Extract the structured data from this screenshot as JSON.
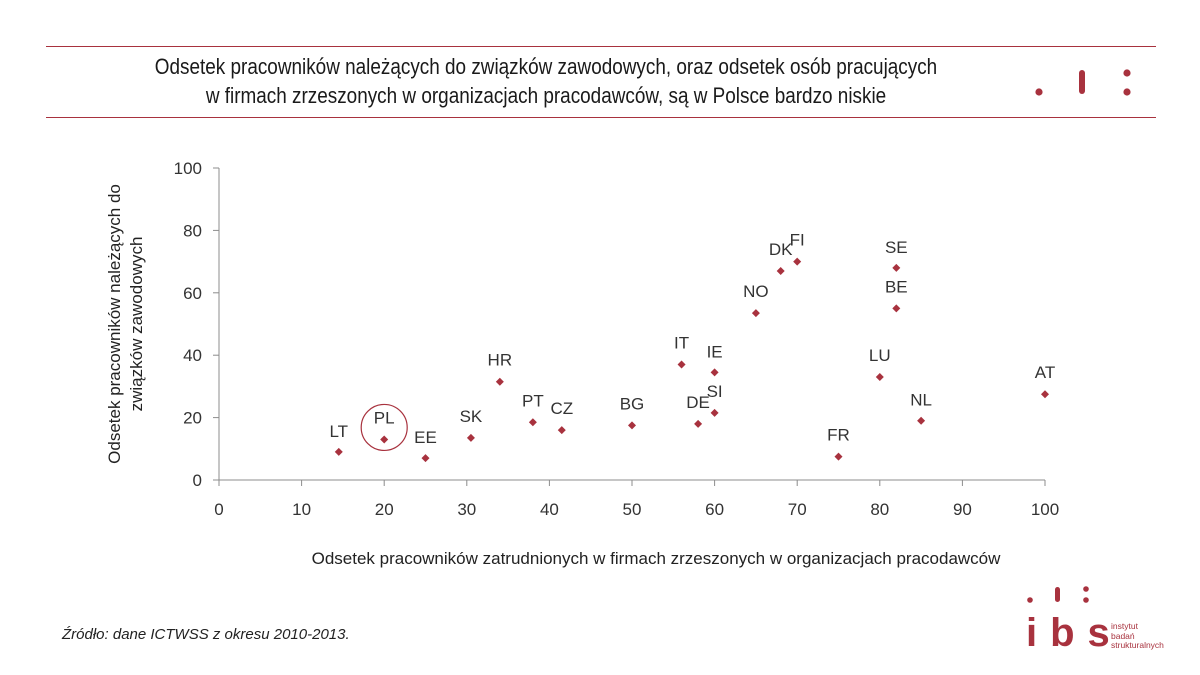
{
  "header": {
    "title_line1": "Odsetek pracowników należących do związków zawodowych, oraz odsetek osób pracujących",
    "title_line2": "w firmach zrzeszonych w organizacjach pracodawców, są w Polsce bardzo niskie"
  },
  "chart_data": {
    "type": "scatter",
    "xlabel": "Odsetek pracowników  zatrudnionych  w firmach zrzeszonych  w organizacjach  pracodawców",
    "ylabel_lines": [
      "Odsetek pracowników należących do",
      "związków zawodowych"
    ],
    "xlim": [
      0,
      100
    ],
    "ylim": [
      0,
      100
    ],
    "x_ticks": [
      0,
      10,
      20,
      30,
      40,
      50,
      60,
      70,
      80,
      90,
      100
    ],
    "y_ticks": [
      0,
      20,
      40,
      60,
      80,
      100
    ],
    "grid": false,
    "highlight": "PL",
    "marker_color": "#a8323e",
    "points": [
      {
        "label": "LT",
        "x": 14.5,
        "y": 9
      },
      {
        "label": "PL",
        "x": 20,
        "y": 13
      },
      {
        "label": "EE",
        "x": 25,
        "y": 7
      },
      {
        "label": "SK",
        "x": 30.5,
        "y": 13.5
      },
      {
        "label": "HR",
        "x": 34,
        "y": 31.5
      },
      {
        "label": "PT",
        "x": 38,
        "y": 18.5
      },
      {
        "label": "CZ",
        "x": 41.5,
        "y": 16
      },
      {
        "label": "BG",
        "x": 50,
        "y": 17.5
      },
      {
        "label": "IT",
        "x": 56,
        "y": 37
      },
      {
        "label": "DE",
        "x": 58,
        "y": 18
      },
      {
        "label": "IE",
        "x": 60,
        "y": 34.5
      },
      {
        "label": "SI",
        "x": 60,
        "y": 21.5
      },
      {
        "label": "NO",
        "x": 65,
        "y": 53.5
      },
      {
        "label": "DK",
        "x": 68,
        "y": 67
      },
      {
        "label": "FI",
        "x": 70,
        "y": 70
      },
      {
        "label": "FR",
        "x": 75,
        "y": 7.5
      },
      {
        "label": "LU",
        "x": 80,
        "y": 33
      },
      {
        "label": "SE",
        "x": 82,
        "y": 68
      },
      {
        "label": "BE",
        "x": 82,
        "y": 55
      },
      {
        "label": "NL",
        "x": 85,
        "y": 19
      },
      {
        "label": "AT",
        "x": 100,
        "y": 27.5
      }
    ]
  },
  "footer": {
    "source": "Źródło: dane ICTWSS z okresu 2010-2013."
  },
  "brand": {
    "logo_letters": "ibs",
    "logo_lines": [
      "instytut",
      "badań",
      "strukturalnych"
    ],
    "accent_color": "#a8323e"
  }
}
